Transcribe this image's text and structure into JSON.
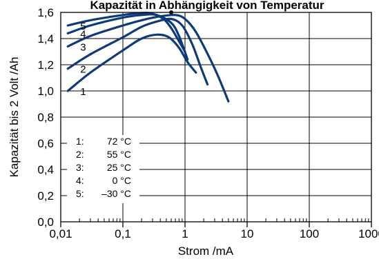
{
  "chart_data": {
    "type": "line",
    "title": "Kapazität in Abhängigkeit von Temperatur",
    "xlabel": "Strom /mA",
    "ylabel": "Kapazität bis 2 Volt /Ah",
    "xscale": "log",
    "xlim": [
      0.01,
      1000
    ],
    "ylim": [
      0.0,
      1.6
    ],
    "x_tick_labels": [
      "0,01",
      "0,1",
      "1",
      "10",
      "100",
      "1000"
    ],
    "y_tick_labels": [
      "0,0",
      "0,2",
      "0,4",
      "0,6",
      "0,8",
      "1,0",
      "1,2",
      "1,4",
      "1,6"
    ],
    "grid": true,
    "color": "#0d3a78",
    "series": [
      {
        "name": "1",
        "legend": "1:",
        "temp": "72 °C",
        "x": [
          0.013,
          0.03,
          0.1,
          0.2,
          0.35,
          0.55,
          0.8,
          1.1,
          1.5
        ],
        "y": [
          1.0,
          1.14,
          1.31,
          1.4,
          1.43,
          1.41,
          1.33,
          1.22,
          1.14
        ]
      },
      {
        "name": "2",
        "legend": "2:",
        "temp": "55 °C",
        "x": [
          0.013,
          0.03,
          0.1,
          0.2,
          0.35,
          0.6,
          0.9,
          1.3,
          1.8,
          2.3
        ],
        "y": [
          1.17,
          1.28,
          1.41,
          1.49,
          1.53,
          1.55,
          1.5,
          1.36,
          1.18,
          1.05
        ]
      },
      {
        "name": "3",
        "legend": "3:",
        "temp": "25 °C",
        "x": [
          0.013,
          0.03,
          0.1,
          0.2,
          0.4,
          0.7,
          1.0,
          1.5,
          2.5,
          3.5,
          5.0
        ],
        "y": [
          1.34,
          1.42,
          1.5,
          1.54,
          1.57,
          1.58,
          1.55,
          1.45,
          1.25,
          1.1,
          0.92
        ]
      },
      {
        "name": "4",
        "legend": "4:",
        "temp": "0 °C",
        "x": [
          0.013,
          0.03,
          0.1,
          0.2,
          0.35,
          0.6,
          0.8,
          1.1
        ],
        "y": [
          1.44,
          1.5,
          1.56,
          1.58,
          1.58,
          1.52,
          1.42,
          1.24
        ]
      },
      {
        "name": "5",
        "legend": "5:",
        "temp": "–30 °C",
        "x": [
          0.013,
          0.03,
          0.1,
          0.2,
          0.3,
          0.45,
          0.6,
          0.8,
          1.0
        ],
        "y": [
          1.5,
          1.54,
          1.58,
          1.595,
          1.59,
          1.55,
          1.48,
          1.38,
          1.3
        ]
      }
    ],
    "marker_point": {
      "x": 0.6,
      "y": 1.6
    }
  }
}
